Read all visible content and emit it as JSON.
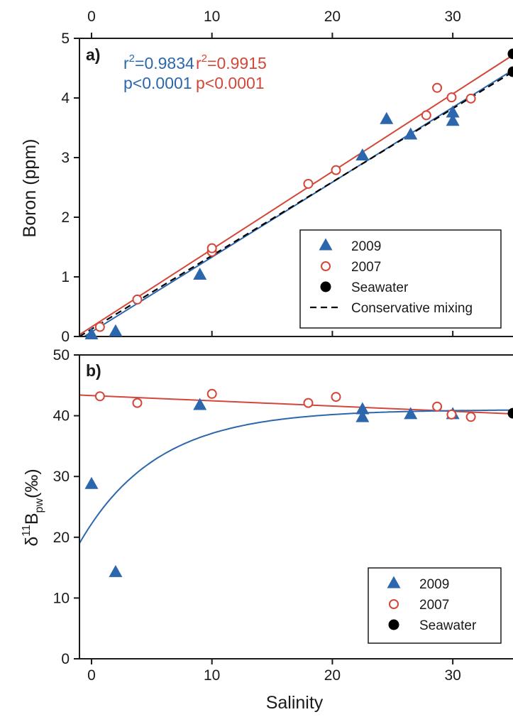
{
  "colors": {
    "blue": "#2c67ad",
    "red": "#d3473a",
    "black": "#000000",
    "frame": "#1a1a1a"
  },
  "x_axis_ticks": [
    "0",
    "10",
    "20",
    "30"
  ],
  "x_axis_label": "Salinity",
  "chart_data": [
    {
      "type": "scatter",
      "panel_label": "a)",
      "ylabel": "Boron (ppm)",
      "xlim": [
        -1,
        35
      ],
      "ylim": [
        0,
        5
      ],
      "y_ticks": [
        "0",
        "1",
        "2",
        "3",
        "4",
        "5"
      ],
      "annotations": [
        {
          "series": "2009",
          "lines": [
            "r²=0.9834",
            "p<0.0001"
          ]
        },
        {
          "series": "2007",
          "lines": [
            "r²=0.9915",
            "p<0.0001"
          ]
        }
      ],
      "series": [
        {
          "name": "2009",
          "marker": "triangle",
          "color": "#2c67ad",
          "points": [
            [
              0,
              0.03
            ],
            [
              2,
              0.08
            ],
            [
              9,
              1.03
            ],
            [
              22.5,
              3.03
            ],
            [
              24.5,
              3.64
            ],
            [
              26.5,
              3.38
            ],
            [
              30,
              3.75
            ],
            [
              30,
              3.61
            ]
          ]
        },
        {
          "name": "2007",
          "marker": "open-circle",
          "color": "#d3473a",
          "points": [
            [
              0.7,
              0.16
            ],
            [
              3.8,
              0.62
            ],
            [
              10,
              1.42
            ],
            [
              10,
              1.48
            ],
            [
              18,
              2.56
            ],
            [
              20.3,
              2.79
            ],
            [
              27.8,
              3.71
            ],
            [
              28.7,
              4.17
            ],
            [
              29.9,
              4.01
            ],
            [
              31.5,
              3.99
            ]
          ]
        },
        {
          "name": "Seawater",
          "marker": "filled-circle",
          "color": "#000000",
          "points": [
            [
              35,
              4.74
            ],
            [
              35,
              4.44
            ]
          ]
        }
      ],
      "fit_lines": [
        {
          "series": "2009",
          "style": "solid",
          "color": "#2c67ad",
          "x": [
            -1,
            35
          ],
          "y": [
            -0.05,
            4.47
          ]
        },
        {
          "series": "2007",
          "style": "solid",
          "color": "#d3473a",
          "x": [
            -1,
            35
          ],
          "y": [
            0.03,
            4.72
          ]
        },
        {
          "name": "Conservative mixing",
          "style": "dashed",
          "color": "#000000",
          "x": [
            -1,
            35
          ],
          "y": [
            0.0,
            4.44
          ]
        }
      ],
      "legend": {
        "position": "lower-right",
        "entries": [
          {
            "label": "2009",
            "marker": "triangle",
            "color": "#2c67ad"
          },
          {
            "label": "2007",
            "marker": "open-circle",
            "color": "#d3473a"
          },
          {
            "label": "Seawater",
            "marker": "filled-circle",
            "color": "#000000"
          },
          {
            "label": "Conservative mixing",
            "marker": "dashed-line",
            "color": "#000000"
          }
        ]
      }
    },
    {
      "type": "scatter",
      "panel_label": "b)",
      "ylabel": {
        "main": "δ",
        "sup": "11",
        "mid": "B",
        "sub": "pw",
        "unit": "(‰)"
      },
      "xlim": [
        -1,
        35
      ],
      "ylim": [
        0,
        50
      ],
      "y_ticks": [
        "0",
        "10",
        "20",
        "30",
        "40",
        "50"
      ],
      "series": [
        {
          "name": "2009",
          "marker": "triangle",
          "color": "#2c67ad",
          "points": [
            [
              0,
              28.7
            ],
            [
              2,
              14.2
            ],
            [
              9,
              41.7
            ],
            [
              22.5,
              41.0
            ],
            [
              22.5,
              39.7
            ],
            [
              26.5,
              40.2
            ],
            [
              30,
              40.2
            ]
          ]
        },
        {
          "name": "2007",
          "marker": "open-circle",
          "color": "#d3473a",
          "points": [
            [
              0.7,
              43.2
            ],
            [
              3.8,
              42.1
            ],
            [
              10,
              43.6
            ],
            [
              18,
              42.1
            ],
            [
              20.3,
              43.1
            ],
            [
              28.7,
              41.5
            ],
            [
              29.9,
              40.2
            ],
            [
              31.5,
              39.8
            ]
          ]
        },
        {
          "name": "Seawater",
          "marker": "filled-circle",
          "color": "#000000",
          "points": [
            [
              35,
              40.4
            ]
          ]
        }
      ],
      "fit_lines": [
        {
          "series": "2007",
          "style": "solid",
          "color": "#d3473a",
          "x": [
            -1,
            35
          ],
          "y": [
            43.4,
            40.3
          ]
        },
        {
          "series": "2009",
          "style": "solid",
          "color": "#2c67ad",
          "kind": "exponential-approach",
          "asymptote": 41.0,
          "start": [
            -1,
            19.0
          ],
          "rate": 0.157,
          "x": [
            -1,
            35
          ]
        }
      ],
      "legend": {
        "position": "lower-right",
        "entries": [
          {
            "label": "2009",
            "marker": "triangle",
            "color": "#2c67ad"
          },
          {
            "label": "2007",
            "marker": "open-circle",
            "color": "#d3473a"
          },
          {
            "label": "Seawater",
            "marker": "filled-circle",
            "color": "#000000"
          }
        ]
      }
    }
  ]
}
